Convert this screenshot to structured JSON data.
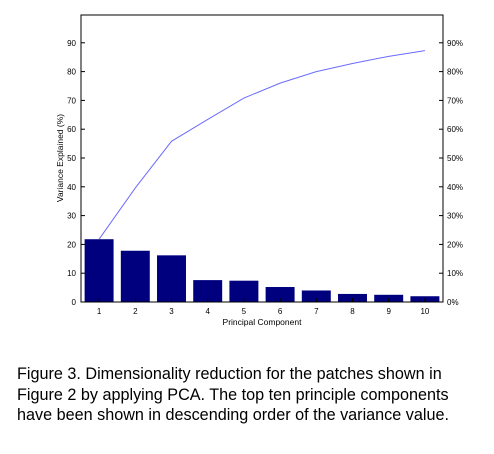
{
  "chart_data": {
    "type": "bar",
    "categories": [
      "1",
      "2",
      "3",
      "4",
      "5",
      "6",
      "7",
      "8",
      "9",
      "10"
    ],
    "series": [
      {
        "type": "bar",
        "axis": "left",
        "values": [
          21.8,
          17.8,
          16.2,
          7.6,
          7.4,
          5.2,
          4.0,
          2.8,
          2.5,
          2.0
        ]
      },
      {
        "type": "line",
        "axis": "right",
        "values": [
          21.8,
          39.6,
          55.8,
          63.4,
          70.8,
          76.0,
          80.0,
          82.8,
          85.3,
          87.3
        ]
      }
    ],
    "xlabel": "Principal Component",
    "ylabel": "Variance Explained (%)",
    "ylim": [
      0,
      90
    ],
    "y_ticks": [
      "0",
      "10",
      "20",
      "30",
      "40",
      "50",
      "60",
      "70",
      "80",
      "90"
    ],
    "y2_ticks": [
      "0%",
      "10%",
      "20%",
      "30%",
      "40%",
      "50%",
      "60%",
      "70%",
      "80%",
      "90%"
    ],
    "colors": {
      "bar": "#00007f",
      "line": "#6b6bff",
      "axis": "#000000"
    }
  },
  "caption": "Figure 3. Dimensionality reduction for the patches shown in Figure 2 by applying PCA. The top ten principle components have been shown in descending order of the variance value."
}
